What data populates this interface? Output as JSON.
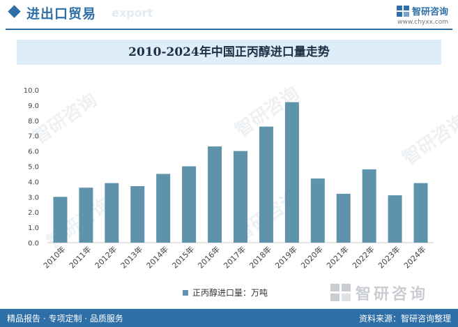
{
  "header": {
    "section_title": "进出口贸易",
    "section_title_shadow": "export",
    "brand_name": "智研咨询",
    "brand_url": "www.chyxx.com"
  },
  "chart_data": {
    "type": "bar",
    "title": "2010-2024年中国正丙醇进口量走势",
    "categories": [
      "2010年",
      "2011年",
      "2012年",
      "2013年",
      "2014年",
      "2015年",
      "2016年",
      "2017年",
      "2018年",
      "2019年",
      "2020年",
      "2021年",
      "2022年",
      "2023年",
      "2024年"
    ],
    "series": [
      {
        "name": "正丙醇进口量：万吨",
        "values": [
          3.0,
          3.6,
          3.9,
          3.7,
          4.5,
          5.0,
          6.3,
          6.0,
          7.6,
          9.2,
          4.2,
          3.2,
          4.8,
          3.1,
          3.9
        ]
      }
    ],
    "ylim": [
      0,
      10
    ],
    "yticks": [
      "0.0",
      "1.0",
      "2.0",
      "3.0",
      "4.0",
      "5.0",
      "6.0",
      "7.0",
      "8.0",
      "9.0",
      "10.0"
    ],
    "bar_color": "#5f93ab",
    "grid": false,
    "legend_position": "bottom"
  },
  "watermark": {
    "text": "智研咨询"
  },
  "footer": {
    "left": "精品报告 · 专项定制 · 品质服务",
    "right": "资料来源：智研咨询整理"
  }
}
